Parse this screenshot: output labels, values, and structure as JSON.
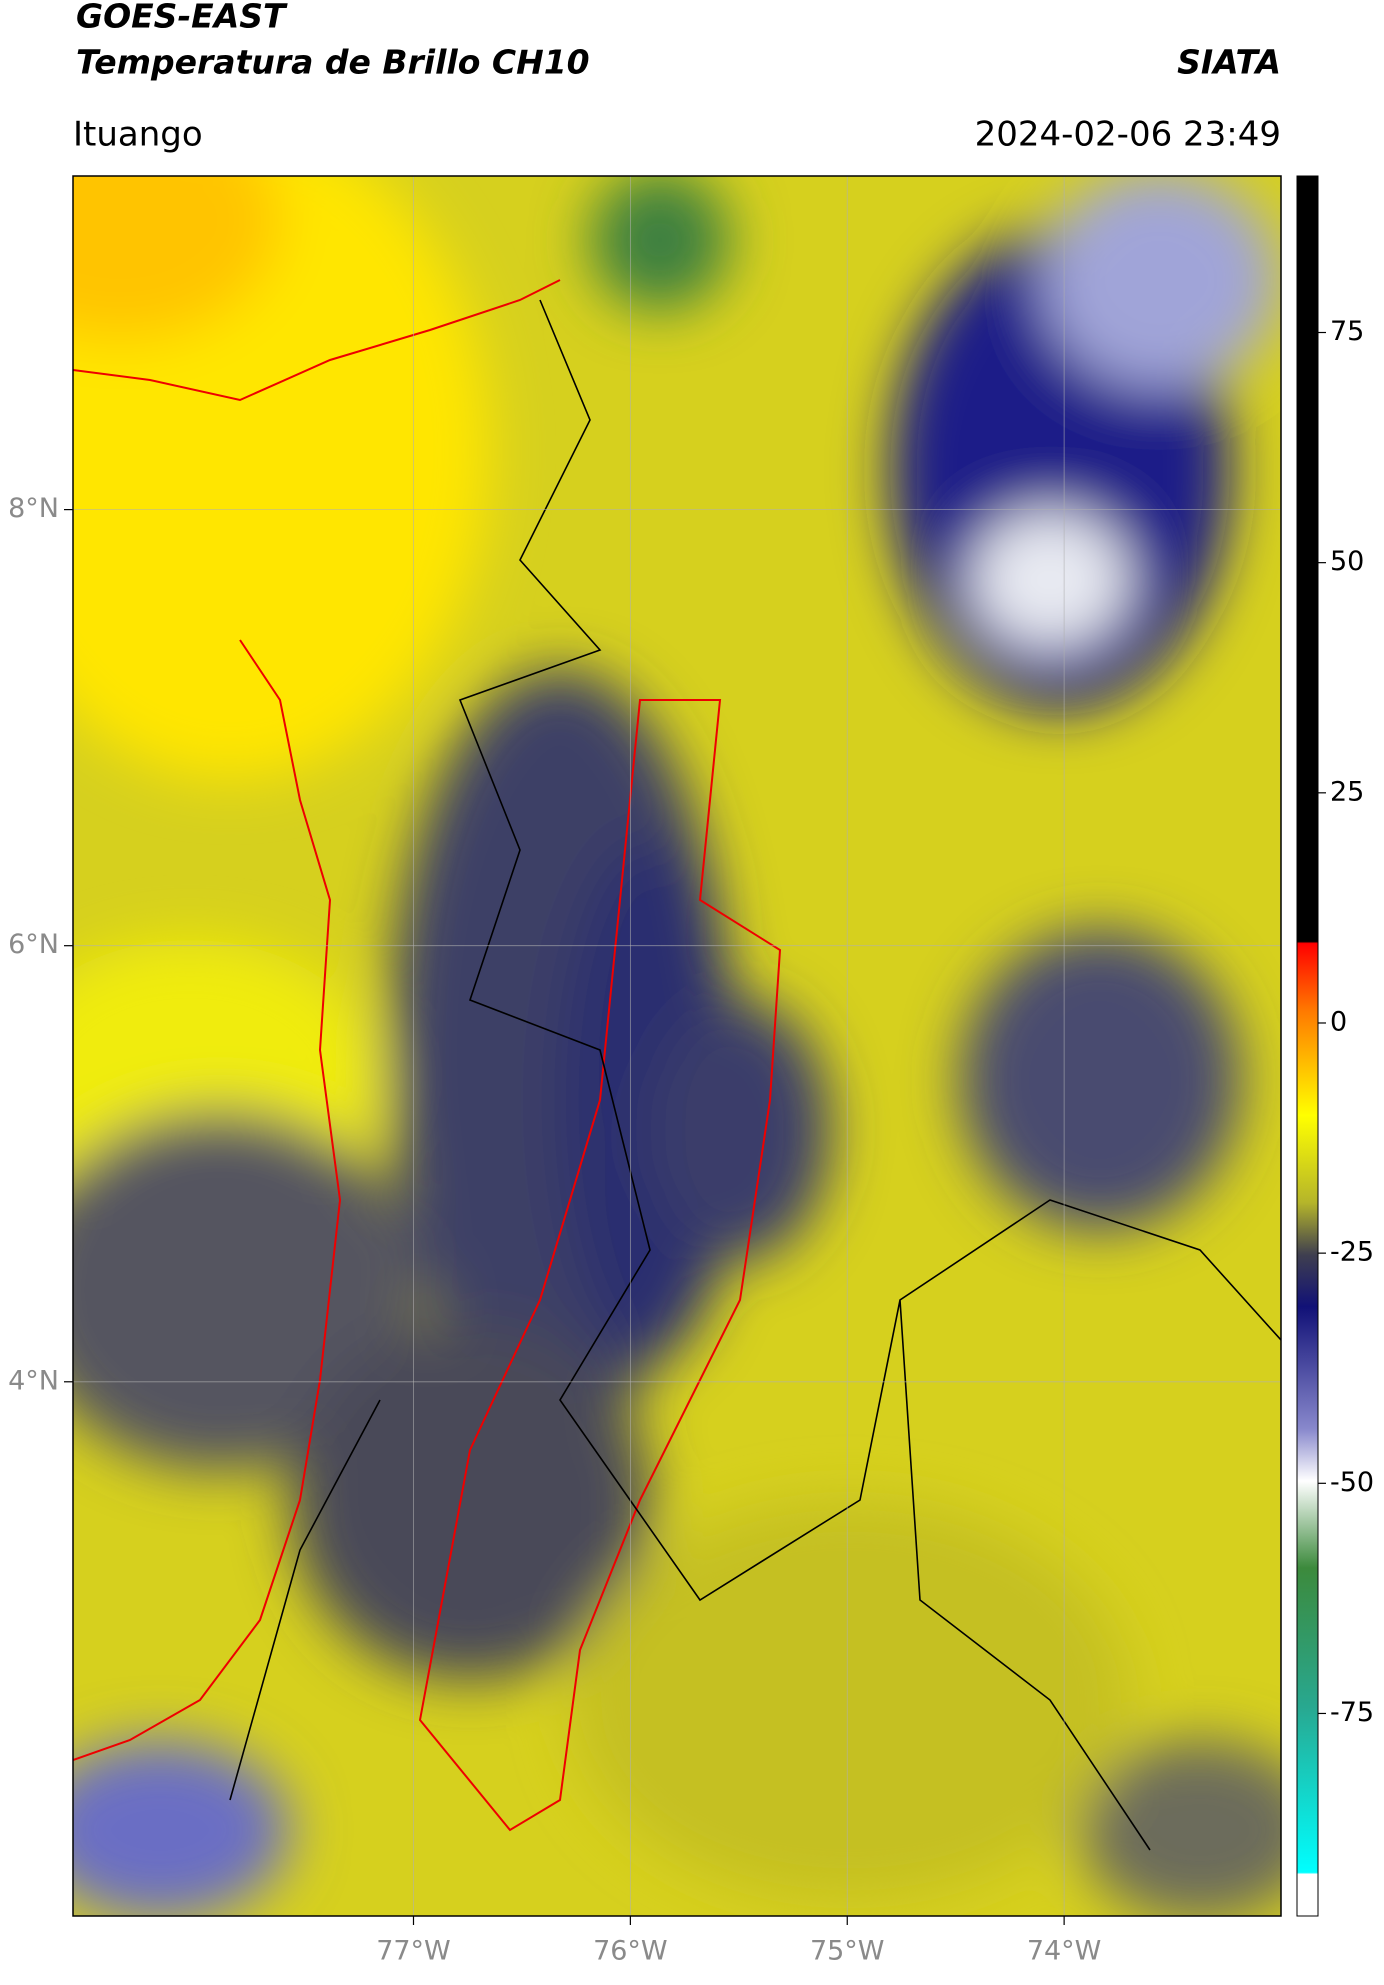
{
  "header": {
    "title": "GOES-EAST",
    "subtitle": "Temperatura de Brillo CH10",
    "brand": "SIATA",
    "location": "Ituango",
    "datetime": "2024-02-06 23:49"
  },
  "map": {
    "xlim": [
      -78.57,
      -73.0
    ],
    "ylim": [
      1.55,
      9.53
    ],
    "xticks": [
      {
        "value": -77,
        "label": "77°W"
      },
      {
        "value": -76,
        "label": "76°W"
      },
      {
        "value": -75,
        "label": "75°W"
      },
      {
        "value": -74,
        "label": "74°W"
      }
    ],
    "yticks": [
      {
        "value": 8,
        "label": "8°N"
      },
      {
        "value": 6,
        "label": "6°N"
      },
      {
        "value": 4,
        "label": "4°N"
      }
    ]
  },
  "colorbar": {
    "lim": [
      -97,
      92
    ],
    "ticks": [
      75,
      50,
      25,
      0,
      -25,
      -50,
      -75
    ]
  }
}
